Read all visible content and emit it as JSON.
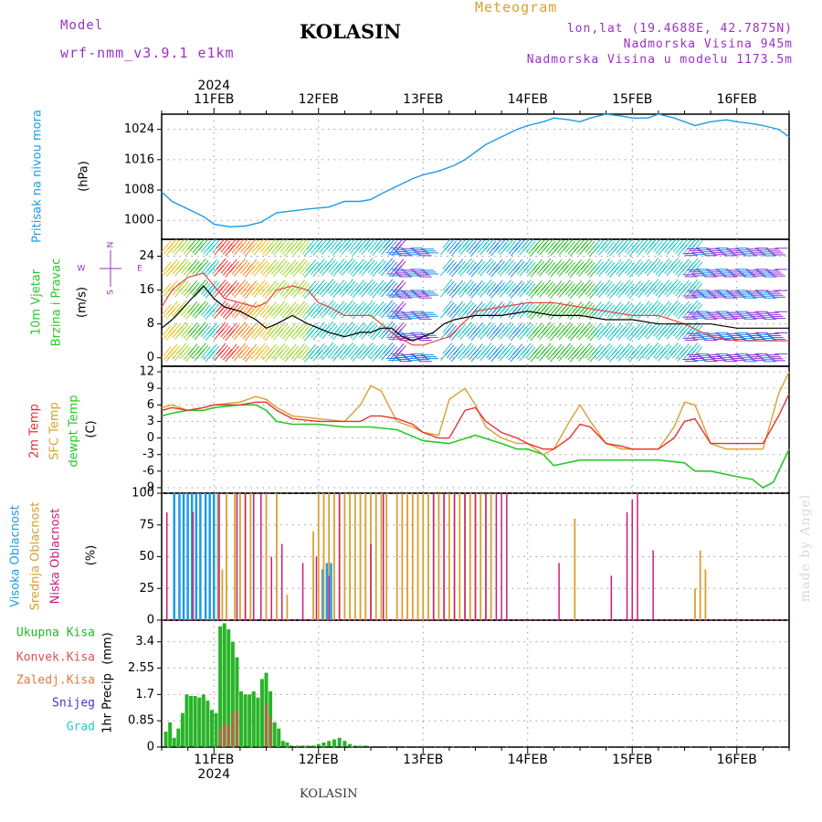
{
  "header": {
    "model_label": "Model",
    "model_name": "wrf-nmm_v3.9.1 e1km",
    "station": "KOLASIN",
    "product": "Meteogram",
    "coords": "lon,lat (19.4688E, 42.7875N)",
    "altitude": "Nadmorska Visina 945m",
    "model_altitude": "Nadmorska Visina u modelu 1173.5m",
    "footer_station": "KOLASIN",
    "watermark": "made by Angel"
  },
  "colors": {
    "pressure": "#1e9be6",
    "temp2m": "#e63232",
    "sfc": "#d9a030",
    "dewpt": "#28c828",
    "cloud_high": "#1e9be6",
    "cloud_mid": "#d9a030",
    "cloud_low": "#c81e78",
    "precip": "#28b428",
    "precip_conv": "#e05050",
    "speed_line": "#000000",
    "gust_line": "#e64646",
    "purple_text": "#9b30c8",
    "snow": "#3c3cc8",
    "hail": "#28c8c8",
    "ice": "#e6783c"
  },
  "chart_data": {
    "time": {
      "date_labels": [
        "11FEB",
        "12FEB",
        "13FEB",
        "14FEB",
        "15FEB",
        "16FEB"
      ],
      "year_label": "2024",
      "x_range_days": [
        10.5,
        16.5
      ]
    },
    "panels": [
      {
        "id": "pressure",
        "type": "line",
        "ylabel": [
          "Pritisak na nivou mora",
          "(hPa)"
        ],
        "yticks": [
          1000,
          1008,
          1016,
          1024
        ],
        "ylim": [
          995,
          1028
        ],
        "series": [
          {
            "name": "",
            "x": [
              10.5,
              10.6,
              10.75,
              10.9,
              11.0,
              11.15,
              11.3,
              11.45,
              11.6,
              11.75,
              11.9,
              12.1,
              12.25,
              12.4,
              12.5,
              12.6,
              12.75,
              12.9,
              13.0,
              13.15,
              13.3,
              13.4,
              13.5,
              13.6,
              13.75,
              13.9,
              14.0,
              14.15,
              14.25,
              14.4,
              14.5,
              14.6,
              14.75,
              14.9,
              15.0,
              15.15,
              15.25,
              15.4,
              15.5,
              15.6,
              15.75,
              15.9,
              16.0,
              16.15,
              16.25,
              16.4,
              16.5
            ],
            "y": [
              1007.5,
              1005,
              1003,
              1001,
              999,
              998.3,
              998.5,
              999.5,
              1002,
              1002.5,
              1003,
              1003.5,
              1005,
              1005,
              1005.5,
              1007,
              1009,
              1011,
              1012,
              1013,
              1014.5,
              1016,
              1018,
              1020,
              1022,
              1024,
              1025,
              1026,
              1027,
              1026.5,
              1026,
              1027,
              1028,
              1027.5,
              1027,
              1027,
              1028,
              1027,
              1026,
              1025,
              1026,
              1026.5,
              1026,
              1025.5,
              1025,
              1024,
              1022
            ]
          }
        ]
      },
      {
        "id": "wind",
        "type": "line",
        "ylabel": [
          "10m Vjetar",
          "Brzina i Pravac",
          "(m/s)"
        ],
        "compass": {
          "n": "N",
          "w": "W",
          "e": "E",
          "s": "S"
        },
        "yticks": [
          0,
          8,
          16,
          24
        ],
        "ylim": [
          -2,
          28
        ],
        "series": [
          {
            "name": "",
            "x": [
              10.5,
              10.6,
              10.75,
              10.9,
              11.0,
              11.1,
              11.25,
              11.4,
              11.5,
              11.6,
              11.75,
              11.9,
              12.0,
              12.1,
              12.25,
              12.4,
              12.5,
              12.6,
              12.7,
              12.8,
              12.9,
              13.0,
              13.1,
              13.2,
              13.3,
              13.5,
              13.75,
              14.0,
              14.25,
              14.5,
              14.75,
              15.0,
              15.25,
              15.5,
              15.75,
              16.0,
              16.25,
              16.5
            ],
            "y": [
              7,
              9,
              13,
              17,
              14,
              12,
              11,
              9,
              7,
              8,
              10,
              8,
              7,
              6,
              5,
              6,
              6,
              7,
              7,
              5,
              4,
              5,
              6,
              8,
              9,
              10,
              10,
              11,
              10,
              10,
              9,
              9,
              8,
              8,
              8,
              7,
              7,
              7
            ]
          },
          {
            "name": "",
            "x": [
              10.5,
              10.6,
              10.75,
              10.9,
              11.0,
              11.1,
              11.25,
              11.4,
              11.5,
              11.6,
              11.75,
              11.9,
              12.0,
              12.1,
              12.25,
              12.4,
              12.5,
              12.6,
              12.75,
              12.9,
              13.0,
              13.25,
              13.5,
              13.75,
              14.0,
              14.25,
              14.5,
              14.75,
              15.0,
              15.25,
              15.5,
              15.75,
              16.0,
              16.25,
              16.5
            ],
            "y": [
              12,
              16,
              19,
              20,
              17,
              14,
              13,
              12,
              13,
              16,
              17,
              16,
              13,
              12,
              10,
              10,
              10,
              8,
              5,
              3,
              3,
              5,
              11,
              12,
              13,
              13,
              12,
              11,
              10,
              10,
              8,
              5,
              4,
              4,
              4
            ]
          }
        ]
      },
      {
        "id": "temperature",
        "type": "line",
        "ylabel": [
          "2m Temp",
          "SFC Temp",
          "dewpt Temp",
          "(C)"
        ],
        "yticks": [
          -9,
          -6,
          -3,
          0,
          3,
          6,
          9,
          12
        ],
        "ylim": [
          -10,
          13
        ],
        "series": [
          {
            "name": "",
            "x": [
              10.5,
              10.6,
              10.75,
              10.9,
              11.0,
              11.25,
              11.4,
              11.5,
              11.6,
              11.75,
              12.0,
              12.25,
              12.4,
              12.5,
              12.6,
              12.75,
              12.9,
              13.0,
              13.15,
              13.25,
              13.4,
              13.5,
              13.6,
              13.75,
              13.9,
              14.0,
              14.15,
              14.25,
              14.4,
              14.5,
              14.6,
              14.75,
              14.9,
              15.0,
              15.15,
              15.25,
              15.4,
              15.5,
              15.6,
              15.75,
              15.9,
              16.0,
              16.15,
              16.25,
              16.4,
              16.5
            ],
            "y": [
              5,
              5.5,
              5,
              5.5,
              6,
              6,
              6.5,
              6.5,
              5,
              3.5,
              3,
              3,
              3,
              4,
              4,
              3.5,
              2.5,
              1,
              0,
              0,
              5,
              5.5,
              3,
              1,
              0,
              -1,
              -2,
              -2,
              0,
              2.5,
              2,
              -1,
              -1.5,
              -2,
              -2,
              -2,
              0,
              3,
              3.5,
              -1,
              -1,
              -1,
              -1,
              -1,
              4,
              8
            ]
          },
          {
            "name": "",
            "x": [
              10.5,
              10.6,
              10.75,
              10.9,
              11.0,
              11.25,
              11.4,
              11.5,
              11.6,
              11.75,
              12.0,
              12.25,
              12.4,
              12.5,
              12.6,
              12.75,
              12.9,
              13.0,
              13.15,
              13.25,
              13.4,
              13.5,
              13.6,
              13.75,
              13.9,
              14.0,
              14.15,
              14.25,
              14.4,
              14.5,
              14.6,
              14.75,
              14.9,
              15.0,
              15.15,
              15.25,
              15.4,
              15.5,
              15.6,
              15.75,
              15.9,
              16.0,
              16.15,
              16.25,
              16.4,
              16.5
            ],
            "y": [
              5.5,
              6,
              5,
              5.5,
              6,
              6.5,
              7.5,
              7,
              5.5,
              4,
              3.5,
              3,
              6,
              9.5,
              8.5,
              3,
              2,
              1,
              0.5,
              7,
              9,
              6,
              2,
              0,
              -1,
              -1,
              -3,
              -2,
              3,
              6,
              3,
              -1,
              -2,
              -2,
              -2,
              -2,
              2,
              6.5,
              6,
              -1,
              -2,
              -2,
              -2,
              -2,
              8,
              12
            ]
          },
          {
            "name": "",
            "x": [
              10.5,
              10.6,
              10.75,
              10.9,
              11.0,
              11.25,
              11.4,
              11.5,
              11.6,
              11.75,
              12.0,
              12.25,
              12.4,
              12.5,
              12.75,
              13.0,
              13.25,
              13.5,
              13.75,
              13.9,
              14.0,
              14.15,
              14.25,
              14.5,
              14.75,
              15.0,
              15.25,
              15.5,
              15.6,
              15.75,
              16.0,
              16.15,
              16.25,
              16.35,
              16.5
            ],
            "y": [
              4,
              4.5,
              5,
              5,
              5.5,
              6,
              6,
              5,
              3,
              2.5,
              2.5,
              2,
              2,
              2,
              1.5,
              -0.5,
              -1,
              0.5,
              -1,
              -2,
              -2,
              -3,
              -5,
              -4,
              -4,
              -4,
              -4,
              -4.5,
              -6,
              -6,
              -7,
              -7.5,
              -9,
              -8,
              -2
            ]
          }
        ]
      },
      {
        "id": "clouds",
        "type": "bar",
        "ylabel": [
          "Visoka Oblacnost",
          "Srednja Oblacnost",
          "Niska Oblacnost",
          "(%)"
        ],
        "yticks": [
          0,
          25,
          50,
          75,
          100
        ],
        "ylim": [
          0,
          100
        ],
        "series": [
          {
            "name": "",
            "x": [
              10.62,
              10.67,
              10.71,
              10.75,
              10.79,
              10.83,
              10.87,
              10.92,
              10.96,
              11.0,
              11.04,
              12.04,
              12.08,
              12.12
            ],
            "y": [
              100,
              100,
              100,
              100,
              100,
              100,
              100,
              100,
              100,
              100,
              100,
              40,
              45,
              45
            ]
          },
          {
            "name": "",
            "x": [
              11.04,
              11.08,
              11.12,
              11.2,
              11.25,
              11.3,
              11.35,
              11.5,
              11.6,
              11.7,
              11.95,
              12.0,
              12.05,
              12.1,
              12.15,
              12.2,
              12.25,
              12.3,
              12.35,
              12.4,
              12.45,
              12.5,
              12.55,
              12.6,
              12.65,
              12.75,
              12.8,
              12.85,
              12.9,
              12.95,
              13.0,
              13.05,
              13.1,
              13.15,
              13.2,
              13.25,
              13.3,
              13.35,
              13.4,
              13.45,
              13.5,
              13.55,
              13.6,
              13.65,
              14.45,
              15.6,
              15.65,
              15.7
            ],
            "y": [
              100,
              40,
              100,
              100,
              100,
              100,
              100,
              100,
              100,
              20,
              70,
              100,
              100,
              100,
              100,
              100,
              100,
              100,
              100,
              100,
              100,
              100,
              100,
              100,
              100,
              100,
              100,
              100,
              100,
              100,
              100,
              100,
              100,
              100,
              100,
              100,
              100,
              100,
              100,
              100,
              100,
              100,
              100,
              100,
              80,
              25,
              55,
              40
            ]
          },
          {
            "name": "",
            "x": [
              10.55,
              10.8,
              11.05,
              11.22,
              11.3,
              11.38,
              11.45,
              11.55,
              11.65,
              11.85,
              11.98,
              12.1,
              12.2,
              12.5,
              12.62,
              13.1,
              13.2,
              13.3,
              13.4,
              13.5,
              13.6,
              13.7,
              13.75,
              13.8,
              14.3,
              14.8,
              14.95,
              15.0,
              15.05,
              15.2
            ],
            "y": [
              85,
              85,
              100,
              100,
              100,
              100,
              100,
              50,
              60,
              45,
              50,
              35,
              100,
              60,
              100,
              100,
              100,
              100,
              100,
              100,
              100,
              100,
              100,
              100,
              45,
              35,
              85,
              95,
              100,
              55
            ]
          }
        ]
      },
      {
        "id": "precip",
        "type": "bar",
        "ylabel": [
          "1hr Precip",
          "(mm)"
        ],
        "legend": [
          "Ukupna Kisa",
          "Konvek.Kisa",
          "Zaledj.Kisa",
          "Snijeg",
          "Grad"
        ],
        "yticks": [
          0,
          0.85,
          1.7,
          2.55,
          3.4
        ],
        "ytick_labels": [
          "0",
          "0.85",
          "1.7",
          "2.55",
          "3.4"
        ],
        "ylim": [
          0,
          4.1
        ],
        "series": [
          {
            "name": "",
            "x": [
              10.54,
              10.58,
              10.62,
              10.66,
              10.7,
              10.74,
              10.78,
              10.82,
              10.86,
              10.9,
              10.94,
              10.98,
              11.02,
              11.06,
              11.1,
              11.14,
              11.18,
              11.22,
              11.26,
              11.3,
              11.34,
              11.38,
              11.42,
              11.46,
              11.5,
              11.54,
              11.58,
              11.62,
              11.66,
              11.7,
              11.74,
              11.8,
              11.85,
              11.9,
              11.95,
              12.0,
              12.05,
              12.1,
              12.15,
              12.2,
              12.25,
              12.3,
              12.35,
              12.4,
              12.45
            ],
            "y": [
              0.5,
              0.8,
              0.3,
              0.6,
              1.1,
              1.7,
              1.65,
              1.65,
              1.6,
              1.7,
              1.5,
              1.2,
              1.1,
              3.9,
              4.0,
              3.8,
              3.4,
              2.9,
              1.8,
              1.7,
              1.7,
              1.8,
              1.6,
              2.2,
              2.4,
              1.8,
              0.8,
              0.6,
              0.2,
              0.15,
              0.05,
              0.05,
              0.05,
              0.05,
              0.05,
              0.1,
              0.15,
              0.2,
              0.25,
              0.3,
              0.2,
              0.1,
              0.05,
              0.05,
              0.05
            ]
          },
          {
            "name": "",
            "x": [
              11.06,
              11.1,
              11.14,
              11.18,
              11.22,
              11.5,
              11.54
            ],
            "y": [
              0.6,
              0.8,
              0.7,
              1.1,
              1.2,
              1.4,
              1.0
            ]
          }
        ]
      }
    ]
  }
}
